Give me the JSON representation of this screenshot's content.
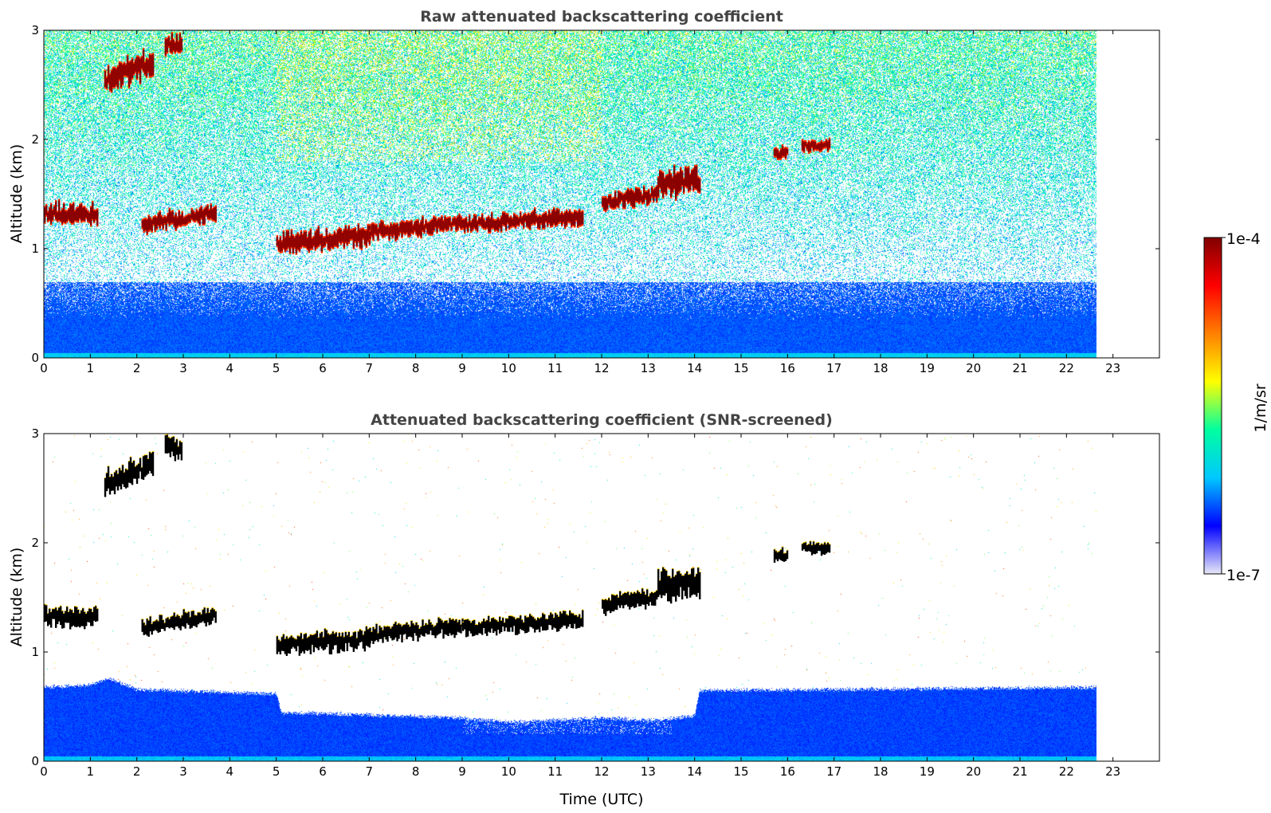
{
  "chart_data": [
    {
      "type": "heatmap",
      "title": "Raw attenuated backscattering coefficient",
      "xlabel": "",
      "ylabel": "Altitude (km)",
      "xlim": [
        0,
        24
      ],
      "ylim": [
        0,
        3
      ],
      "x_ticks": [
        "0",
        "1",
        "2",
        "3",
        "4",
        "5",
        "6",
        "7",
        "8",
        "9",
        "10",
        "11",
        "12",
        "13",
        "14",
        "15",
        "16",
        "17",
        "18",
        "19",
        "20",
        "21",
        "22",
        "23"
      ],
      "y_ticks": [
        "0",
        "1",
        "2",
        "3"
      ],
      "data_end_hour": 22.65,
      "screened": false,
      "aerosol_layer_top_km": 0.7,
      "noise_level": "high above 0.7 km (blue to yellow speckle)",
      "cloud_segments": [
        {
          "x": [
            0,
            1.15
          ],
          "alt": [
            1.32,
            1.32
          ],
          "thickness": 0.12
        },
        {
          "x": [
            1.3,
            2.35
          ],
          "alt": [
            2.55,
            2.72
          ],
          "thickness": 0.15
        },
        {
          "x": [
            2.6,
            2.95
          ],
          "alt": [
            2.87,
            2.85
          ],
          "thickness": 0.13
        },
        {
          "x": [
            2.1,
            3.7
          ],
          "alt": [
            1.22,
            1.33
          ],
          "thickness": 0.1
        },
        {
          "x": [
            5.0,
            7.0
          ],
          "alt": [
            1.05,
            1.12
          ],
          "thickness": 0.12
        },
        {
          "x": [
            7.0,
            9.0
          ],
          "alt": [
            1.15,
            1.24
          ],
          "thickness": 0.1
        },
        {
          "x": [
            9.0,
            11.6
          ],
          "alt": [
            1.22,
            1.3
          ],
          "thickness": 0.1
        },
        {
          "x": [
            12.0,
            13.2
          ],
          "alt": [
            1.43,
            1.5
          ],
          "thickness": 0.1
        },
        {
          "x": [
            13.2,
            14.1
          ],
          "alt": [
            1.6,
            1.62
          ],
          "thickness": 0.16
        },
        {
          "x": [
            15.7,
            16.0
          ],
          "alt": [
            1.87,
            1.88
          ],
          "thickness": 0.08
        },
        {
          "x": [
            16.3,
            16.9
          ],
          "alt": [
            1.95,
            1.95
          ],
          "thickness": 0.07
        }
      ]
    },
    {
      "type": "heatmap",
      "title": "Attenuated backscattering coefficient (SNR-screened)",
      "xlabel": "Time (UTC)",
      "ylabel": "Altitude (km)",
      "xlim": [
        0,
        24
      ],
      "ylim": [
        0,
        3
      ],
      "x_ticks": [
        "0",
        "1",
        "2",
        "3",
        "4",
        "5",
        "6",
        "7",
        "8",
        "9",
        "10",
        "11",
        "12",
        "13",
        "14",
        "15",
        "16",
        "17",
        "18",
        "19",
        "20",
        "21",
        "22",
        "23"
      ],
      "y_ticks": [
        "0",
        "1",
        "2",
        "3"
      ],
      "data_end_hour": 22.65,
      "screened": true,
      "aerosol_top_profile": [
        {
          "x": 0,
          "alt": 0.68
        },
        {
          "x": 1.0,
          "alt": 0.7
        },
        {
          "x": 1.4,
          "alt": 0.76
        },
        {
          "x": 2.0,
          "alt": 0.66
        },
        {
          "x": 5.0,
          "alt": 0.62
        },
        {
          "x": 5.1,
          "alt": 0.45
        },
        {
          "x": 9.0,
          "alt": 0.4
        },
        {
          "x": 10.0,
          "alt": 0.36
        },
        {
          "x": 12.0,
          "alt": 0.4
        },
        {
          "x": 13.2,
          "alt": 0.38
        },
        {
          "x": 14.0,
          "alt": 0.42
        },
        {
          "x": 14.1,
          "alt": 0.65
        },
        {
          "x": 22.65,
          "alt": 0.68
        }
      ],
      "cloud_segments": [
        {
          "x": [
            0,
            1.15
          ],
          "alt": [
            1.32,
            1.32
          ],
          "thickness": 0.12
        },
        {
          "x": [
            1.3,
            2.35
          ],
          "alt": [
            2.55,
            2.72
          ],
          "thickness": 0.15
        },
        {
          "x": [
            2.6,
            2.95
          ],
          "alt": [
            2.87,
            2.85
          ],
          "thickness": 0.13
        },
        {
          "x": [
            2.1,
            3.7
          ],
          "alt": [
            1.22,
            1.33
          ],
          "thickness": 0.1
        },
        {
          "x": [
            5.0,
            7.0
          ],
          "alt": [
            1.05,
            1.12
          ],
          "thickness": 0.12
        },
        {
          "x": [
            7.0,
            9.0
          ],
          "alt": [
            1.15,
            1.24
          ],
          "thickness": 0.1
        },
        {
          "x": [
            9.0,
            11.6
          ],
          "alt": [
            1.22,
            1.3
          ],
          "thickness": 0.1
        },
        {
          "x": [
            12.0,
            13.2
          ],
          "alt": [
            1.43,
            1.5
          ],
          "thickness": 0.1
        },
        {
          "x": [
            13.2,
            14.1
          ],
          "alt": [
            1.6,
            1.62
          ],
          "thickness": 0.16
        },
        {
          "x": [
            15.7,
            16.0
          ],
          "alt": [
            1.87,
            1.88
          ],
          "thickness": 0.08
        },
        {
          "x": [
            16.3,
            16.9
          ],
          "alt": [
            1.95,
            1.95
          ],
          "thickness": 0.07
        }
      ]
    }
  ],
  "colorbar": {
    "label": "1/m/sr",
    "max_label": "1e-4",
    "min_label": "1e-7",
    "scale": "log",
    "range": [
      1e-07,
      0.0001
    ],
    "colors": [
      "#e8e8f8",
      "#0000ff",
      "#00c8ff",
      "#00ffa0",
      "#ffff00",
      "#ff8000",
      "#ff0000",
      "#800000"
    ]
  },
  "colors": {
    "title": "#444444",
    "cloud_core": "#8b0000",
    "cloud_edge": "#ff3300",
    "cloud_screened": "#000000"
  }
}
